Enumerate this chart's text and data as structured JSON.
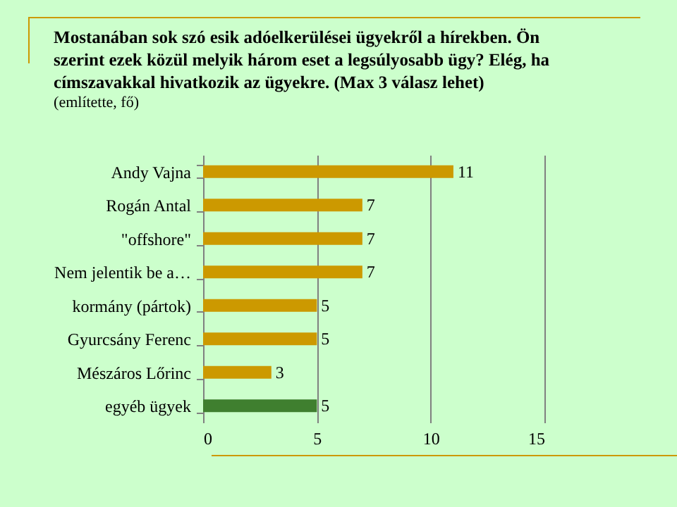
{
  "chart_data": {
    "type": "bar",
    "orientation": "horizontal",
    "title": [
      "Mostanában sok szó esik adóelkerülései ügyekről a hírekben. Ön",
      "szerint ezek közül melyik három eset a legsúlyosabb ügy? Elég, ha",
      "címszavakkal hivatkozik az ügyekre. (Max 3 válasz lehet)"
    ],
    "subtitle": "(említette, fő)",
    "categories": [
      "Andy Vajna",
      "Rogán Antal",
      "\"offshore\"",
      "Nem jelentik be a…",
      "kormány (pártok)",
      "Gyurcsány Ferenc",
      "Mészáros Lőrinc",
      "egyéb ügyek"
    ],
    "values": [
      11,
      7,
      7,
      7,
      5,
      5,
      3,
      5
    ],
    "colors": [
      "#cc9900",
      "#cc9900",
      "#cc9900",
      "#cc9900",
      "#cc9900",
      "#cc9900",
      "#cc9900",
      "#3f7f2f"
    ],
    "xlim": [
      0,
      15
    ],
    "xticks": [
      0,
      5,
      10,
      15
    ],
    "grid": "x",
    "data_labels": true
  }
}
